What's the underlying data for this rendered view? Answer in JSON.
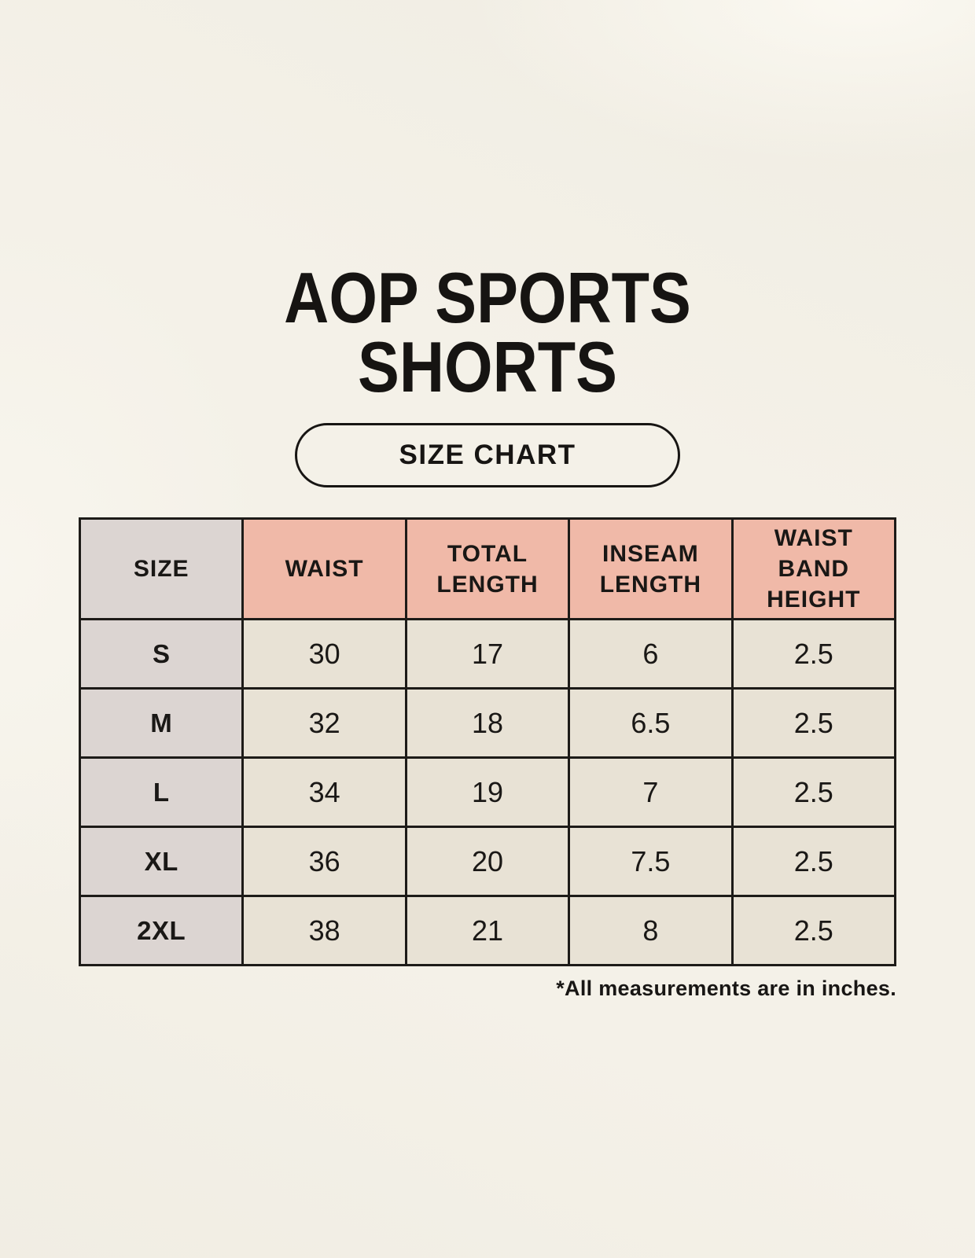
{
  "header": {
    "title_line1": "AOP SPORTS",
    "title_line2": "SHORTS",
    "size_chart_label": "SIZE CHART"
  },
  "table": {
    "headers": [
      "SIZE",
      "WAIST",
      "TOTAL LENGTH",
      "INSEAM LENGTH",
      "WAIST BAND HEIGHT"
    ],
    "rows": [
      {
        "size": "S",
        "waist": "30",
        "total_length": "17",
        "inseam_length": "6",
        "waist_band_height": "2.5"
      },
      {
        "size": "M",
        "waist": "32",
        "total_length": "18",
        "inseam_length": "6.5",
        "waist_band_height": "2.5"
      },
      {
        "size": "L",
        "waist": "34",
        "total_length": "19",
        "inseam_length": "7",
        "waist_band_height": "2.5"
      },
      {
        "size": "XL",
        "waist": "36",
        "total_length": "20",
        "inseam_length": "7.5",
        "waist_band_height": "2.5"
      },
      {
        "size": "2XL",
        "waist": "38",
        "total_length": "21",
        "inseam_length": "8",
        "waist_band_height": "2.5"
      }
    ]
  },
  "footer": {
    "note": "*All measurements are in inches."
  },
  "colors": {
    "background": "#f4f1e8",
    "header_pink": "#f0b9a8",
    "size_column_gray": "#dcd5d2",
    "cell_beige": "#e8e2d5",
    "border": "#1d1b18",
    "text": "#1a1816"
  }
}
